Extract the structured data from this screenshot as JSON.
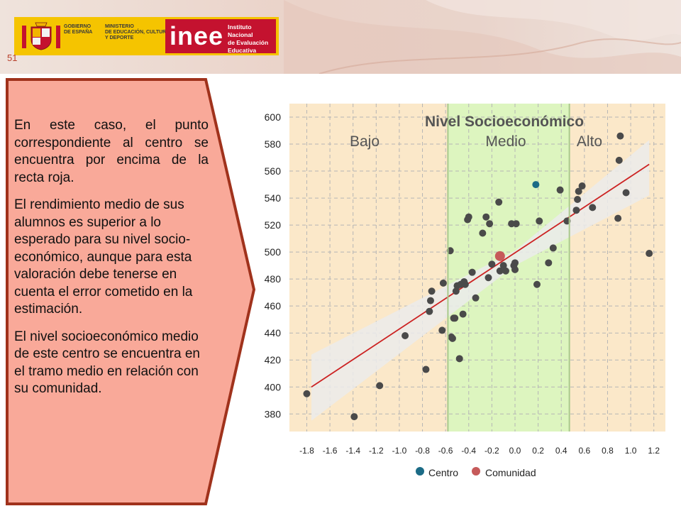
{
  "header": {
    "gov_label": "GOBIERNO\nDE ESPAÑA",
    "ministry_label": "MINISTERIO\nDE EDUCACIÓN, CULTURA\nY DEPORTE",
    "inee_logo_text": "inee",
    "inee_full_name": "Instituto Nacional\nde Evaluación\nEducativa",
    "slide_number": "51",
    "colors": {
      "banner": "#ead2c8",
      "gov_yellow": "#f5c400",
      "inee_red": "#c4122f"
    }
  },
  "callout": {
    "paragraph_1": "En este caso, el punto correspondiente al centro se encuentra por encima de la recta roja.",
    "paragraph_2": "El rendimiento medio de sus alumnos es superior a lo esperado para su nivel socio-económico, aunque para esta valoración debe tenerse en cuenta el error cometido en la estimación.",
    "paragraph_3": "El nivel socioeconómico medio de este centro se encuentra en el tramo medio en relación con su comunidad.",
    "colors": {
      "fill": "#f9a999",
      "border": "#a0321c"
    }
  },
  "chart_data": {
    "type": "scatter",
    "title": "Nivel Socioeconómico",
    "band_labels": [
      "Bajo",
      "Medio",
      "Alto"
    ],
    "band_edges": [
      -0.58,
      0.47
    ],
    "band_colors": {
      "low": "#fbe8c9",
      "middle": "#ddf5bf",
      "high": "#fbe8c9",
      "edge_line": "#a9c98c"
    },
    "xlim": [
      -1.95,
      1.3
    ],
    "ylim": [
      367,
      610
    ],
    "x_ticks": [
      -1.8,
      -1.6,
      -1.4,
      -1.2,
      -1.0,
      -0.8,
      -0.6,
      -0.4,
      -0.2,
      0.0,
      0.2,
      0.4,
      0.6,
      0.8,
      1.0,
      1.2
    ],
    "x_tick_labels": [
      "-1.8",
      "-1.6",
      "-1.4",
      "-1.2",
      "-1.0",
      "-0.8",
      "-0.6",
      "-0.4",
      "-0.2",
      "0.0",
      "0.2",
      "0.4",
      "0.6",
      "0.8",
      "1.0",
      "1.2"
    ],
    "y_ticks": [
      380,
      400,
      420,
      440,
      460,
      480,
      500,
      520,
      540,
      560,
      580,
      600
    ],
    "y_tick_labels": [
      "380",
      "400",
      "420",
      "440",
      "460",
      "480",
      "500",
      "520",
      "540",
      "560",
      "580",
      "600"
    ],
    "grid": true,
    "regression_line": {
      "x": [
        -1.76,
        1.16
      ],
      "y": [
        400,
        565
      ],
      "color": "#cc2222"
    },
    "confidence_band": {
      "x": [
        -1.76,
        0.0,
        1.16
      ],
      "lower": [
        375,
        490,
        542
      ],
      "upper": [
        424,
        501,
        583
      ],
      "color": "#ebebeb"
    },
    "schools": {
      "name": "Comunidad",
      "color": "#4a4a4a",
      "x": [
        -1.8,
        -1.39,
        -1.17,
        -0.95,
        -0.77,
        -0.74,
        -0.73,
        -0.72,
        -0.63,
        -0.62,
        -0.56,
        -0.55,
        -0.54,
        -0.53,
        -0.52,
        -0.51,
        -0.5,
        -0.48,
        -0.47,
        -0.45,
        -0.44,
        -0.43,
        -0.41,
        -0.4,
        -0.37,
        -0.34,
        -0.28,
        -0.25,
        -0.23,
        -0.22,
        -0.2,
        -0.14,
        -0.13,
        -0.1,
        -0.08,
        -0.03,
        -0.01,
        0.0,
        0.01,
        0.0,
        0.19,
        0.21,
        0.29,
        0.33,
        0.39,
        0.45,
        0.53,
        0.54,
        0.55,
        0.58,
        0.67,
        0.89,
        0.9,
        0.91,
        0.96,
        1.16
      ],
      "y": [
        395,
        378,
        401,
        438,
        413,
        456,
        464,
        471,
        442,
        477,
        501,
        437,
        436,
        451,
        451,
        471,
        475,
        421,
        476,
        454,
        478,
        476,
        524,
        526,
        485,
        466,
        514,
        526,
        481,
        521,
        491,
        537,
        486,
        490,
        486,
        521,
        490,
        492,
        521,
        487,
        476,
        523,
        492,
        503,
        546,
        523,
        531,
        539,
        545,
        549,
        533,
        525,
        568,
        586,
        544,
        499
      ]
    },
    "centro": {
      "name": "Centro",
      "x": 0.18,
      "y": 550,
      "color": "#1b6b86"
    },
    "comunidad_mean": {
      "name": "Comunidad",
      "x": -0.13,
      "y": 497,
      "color": "#c65a5a"
    },
    "legend": [
      {
        "label": "Centro",
        "color": "#1b6b86"
      },
      {
        "label": "Comunidad",
        "color": "#c65a5a"
      }
    ]
  }
}
